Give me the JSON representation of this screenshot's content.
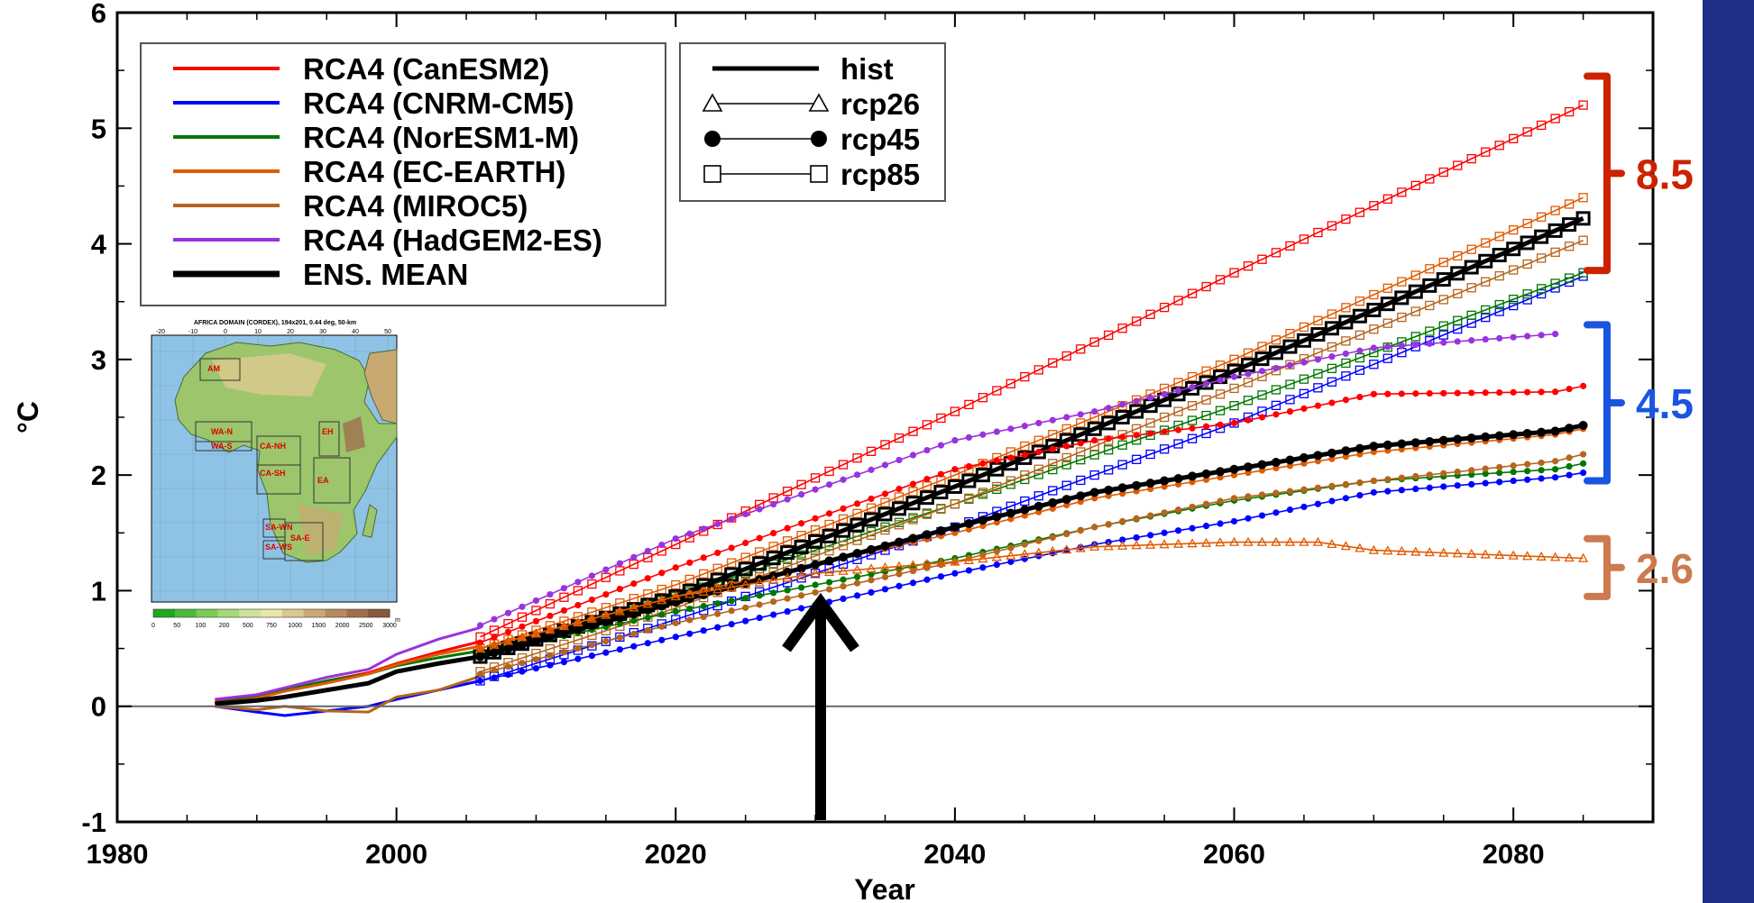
{
  "chart_data": {
    "type": "line",
    "xlabel": "Year",
    "ylabel": "°C",
    "xlim": [
      1980,
      2090
    ],
    "ylim": [
      -1,
      6
    ],
    "x_ticks": [
      "1980",
      "2000",
      "2020",
      "2040",
      "2060",
      "2080"
    ],
    "y_ticks": [
      "-1",
      "0",
      "1",
      "2",
      "3",
      "4",
      "5",
      "6"
    ],
    "grid": false,
    "zero_line": 0,
    "legend_models": [
      {
        "name": "RCA4 (CanESM2)",
        "color": "#ff0000"
      },
      {
        "name": "RCA4 (CNRM-CM5)",
        "color": "#0000ff"
      },
      {
        "name": "RCA4 (NorESM1-M)",
        "color": "#007700"
      },
      {
        "name": "RCA4 (EC-EARTH)",
        "color": "#e05a00"
      },
      {
        "name": "RCA4 (MIROC5)",
        "color": "#b5651d"
      },
      {
        "name": "RCA4 (HadGEM2-ES)",
        "color": "#9933dd"
      },
      {
        "name": "ENS. MEAN",
        "color": "#000000"
      }
    ],
    "legend_scenarios": [
      {
        "name": "hist",
        "marker": "none"
      },
      {
        "name": "rcp26",
        "marker": "triangle"
      },
      {
        "name": "rcp45",
        "marker": "filled-circle"
      },
      {
        "name": "rcp85",
        "marker": "open-square"
      }
    ],
    "historical": {
      "x": [
        1987,
        1990,
        1992,
        1995,
        1998,
        2000,
        2003,
        2006
      ],
      "series": [
        {
          "name": "RCA4 (CanESM2)",
          "values": [
            0.05,
            0.09,
            0.14,
            0.22,
            0.29,
            0.37,
            0.47,
            0.56
          ]
        },
        {
          "name": "RCA4 (CNRM-CM5)",
          "values": [
            0.0,
            -0.05,
            -0.08,
            -0.04,
            0.0,
            0.06,
            0.14,
            0.22
          ]
        },
        {
          "name": "RCA4 (NorESM1-M)",
          "values": [
            0.03,
            0.08,
            0.14,
            0.22,
            0.28,
            0.35,
            0.42,
            0.48
          ]
        },
        {
          "name": "RCA4 (EC-EARTH)",
          "values": [
            0.02,
            0.07,
            0.13,
            0.2,
            0.28,
            0.36,
            0.45,
            0.52
          ]
        },
        {
          "name": "RCA4 (MIROC5)",
          "values": [
            0.0,
            -0.03,
            0.0,
            -0.04,
            -0.05,
            0.08,
            0.14,
            0.26
          ]
        },
        {
          "name": "RCA4 (HadGEM2-ES)",
          "values": [
            0.06,
            0.1,
            0.16,
            0.25,
            0.32,
            0.45,
            0.58,
            0.68
          ]
        },
        {
          "name": "ENS. MEAN",
          "values": [
            0.02,
            0.05,
            0.08,
            0.14,
            0.2,
            0.3,
            0.37,
            0.43
          ]
        }
      ]
    },
    "rcp85": {
      "x": [
        2006,
        2020,
        2040,
        2060,
        2085
      ],
      "series": [
        {
          "name": "RCA4 (CanESM2)",
          "values": [
            0.6,
            1.4,
            2.55,
            3.75,
            5.2
          ]
        },
        {
          "name": "RCA4 (CNRM-CM5)",
          "values": [
            0.22,
            0.75,
            1.55,
            2.45,
            3.72
          ]
        },
        {
          "name": "RCA4 (NorESM1-M)",
          "values": [
            0.45,
            0.95,
            1.75,
            2.6,
            3.75
          ]
        },
        {
          "name": "RCA4 (EC-EARTH)",
          "values": [
            0.5,
            1.05,
            2.0,
            3.0,
            4.4
          ]
        },
        {
          "name": "RCA4 (MIROC5)",
          "values": [
            0.3,
            0.85,
            1.75,
            2.75,
            4.03
          ]
        },
        {
          "name": "ENS. MEAN",
          "values": [
            0.43,
            0.95,
            1.9,
            2.9,
            4.22
          ]
        }
      ]
    },
    "rcp45": {
      "x": [
        2006,
        2020,
        2040,
        2050,
        2060,
        2070,
        2083,
        2085
      ],
      "series": [
        {
          "name": "RCA4 (CanESM2)",
          "values": [
            0.55,
            1.2,
            2.05,
            2.3,
            2.45,
            2.7,
            2.72,
            2.77
          ]
        },
        {
          "name": "RCA4 (CNRM-CM5)",
          "values": [
            0.22,
            0.6,
            1.15,
            1.4,
            1.6,
            1.85,
            1.98,
            2.02
          ]
        },
        {
          "name": "RCA4 (NorESM1-M)",
          "values": [
            0.45,
            0.82,
            1.28,
            1.55,
            1.78,
            1.95,
            2.05,
            2.1
          ]
        },
        {
          "name": "RCA4 (EC-EARTH)",
          "values": [
            0.5,
            0.95,
            1.5,
            1.8,
            2.0,
            2.2,
            2.35,
            2.4
          ]
        },
        {
          "name": "RCA4 (MIROC5)",
          "values": [
            0.28,
            0.72,
            1.25,
            1.55,
            1.8,
            1.95,
            2.12,
            2.18
          ]
        },
        {
          "name": "RCA4 (HadGEM2-ES)",
          "values": [
            0.7,
            1.45,
            2.3,
            2.55,
            2.85,
            3.1,
            3.22,
            null
          ]
        },
        {
          "name": "ENS. MEAN",
          "values": [
            0.43,
            0.9,
            1.55,
            1.85,
            2.05,
            2.25,
            2.38,
            2.43
          ]
        }
      ]
    },
    "rcp26": {
      "x": [
        2006,
        2020,
        2030,
        2040,
        2050,
        2060,
        2066,
        2070,
        2085
      ],
      "series": [
        {
          "name": "RCA4 (EC-EARTH)",
          "values": [
            0.5,
            0.95,
            1.15,
            1.25,
            1.38,
            1.42,
            1.42,
            1.35,
            1.28
          ]
        }
      ]
    },
    "annotations": {
      "arrow_year": 2031,
      "brackets": [
        {
          "label": "8.5",
          "color": "#cc2200",
          "range": [
            3.77,
            5.45
          ]
        },
        {
          "label": "4.5",
          "color": "#1a55e0",
          "range": [
            1.95,
            3.3
          ]
        },
        {
          "label": "2.6",
          "color": "#cc7a50",
          "range": [
            0.95,
            1.45
          ]
        }
      ]
    }
  },
  "inset_map": {
    "title": "AFRICA DOMAIN (CORDEX), 194x201, 0.44 deg, 50-km",
    "regions": [
      "AM",
      "WA-N",
      "WA-S",
      "CA-NH",
      "CA-SH",
      "EH",
      "EA",
      "SA-WN",
      "SA-WS",
      "SA-E"
    ],
    "colorbar_labels": [
      "0",
      "50",
      "100",
      "200",
      "500",
      "750",
      "1000",
      "1500",
      "2000",
      "2500",
      "3000"
    ],
    "colorbar_unit": "m",
    "colorbar_colors": [
      "#1fa81f",
      "#4cbb3a",
      "#7ccc55",
      "#a8d87a",
      "#cde39a",
      "#e8e7a6",
      "#d9c98c",
      "#c9a871",
      "#b88a5f",
      "#a0704e",
      "#86583e"
    ],
    "lon_labels": [
      "-20",
      "-10",
      "0",
      "10",
      "20",
      "30",
      "40",
      "50"
    ]
  }
}
